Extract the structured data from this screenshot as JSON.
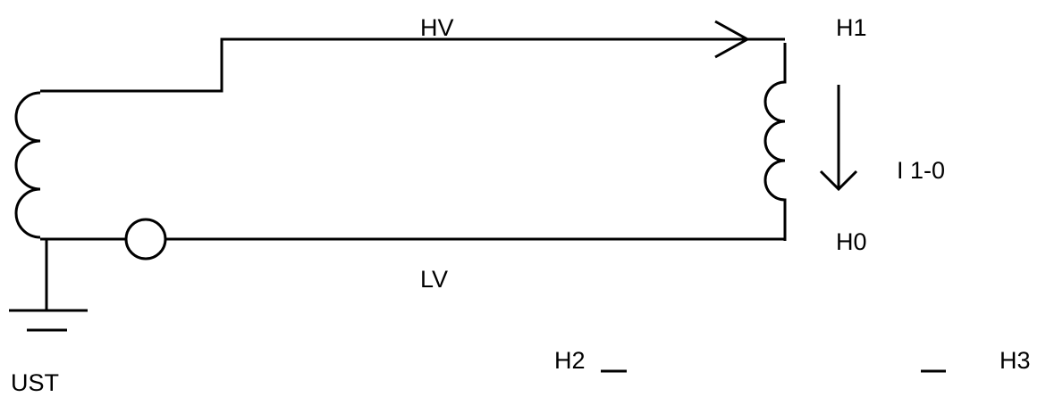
{
  "labels": {
    "hv": "HV",
    "h1": "H1",
    "current": "I 1-0",
    "h0": "H0",
    "lv": "LV",
    "ust": "UST",
    "h2": "H2",
    "h3": "H3"
  }
}
